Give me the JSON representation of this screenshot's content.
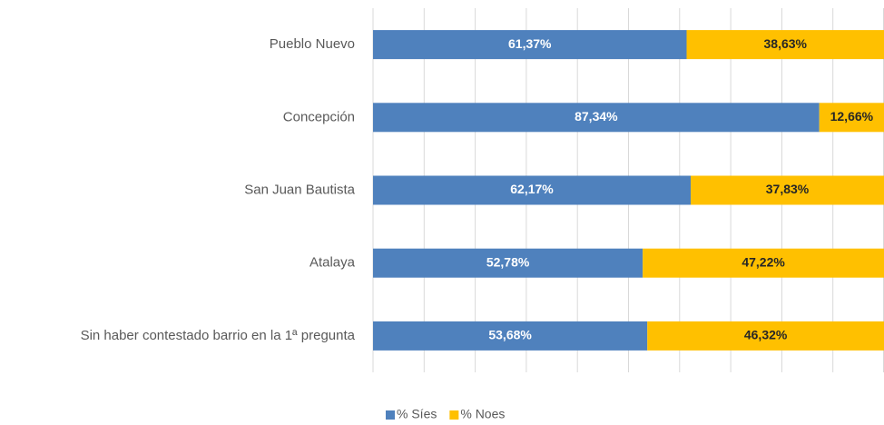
{
  "chart_data": {
    "type": "stacked_bar_horizontal",
    "categories": [
      "Pueblo Nuevo",
      "Concepción",
      "San Juan Bautista",
      "Atalaya",
      "Sin haber contestado barrio en la 1ª pregunta"
    ],
    "series": [
      {
        "name": "% Síes",
        "color": "#4f81bd",
        "values": [
          61.37,
          87.34,
          62.17,
          52.78,
          53.68
        ],
        "value_labels": [
          "61,37%",
          "87,34%",
          "62,17%",
          "52,78%",
          "53,68%"
        ]
      },
      {
        "name": "% Noes",
        "color": "#ffc000",
        "values": [
          38.63,
          12.66,
          37.83,
          47.22,
          46.32
        ],
        "value_labels": [
          "38,63%",
          "12,66%",
          "37,83%",
          "47,22%",
          "46,32%"
        ]
      }
    ],
    "xlim": [
      0,
      100
    ],
    "xticks": [
      0,
      10,
      20,
      30,
      40,
      50,
      60,
      70,
      80,
      90,
      100
    ],
    "grid": true,
    "legend": "bottom"
  }
}
